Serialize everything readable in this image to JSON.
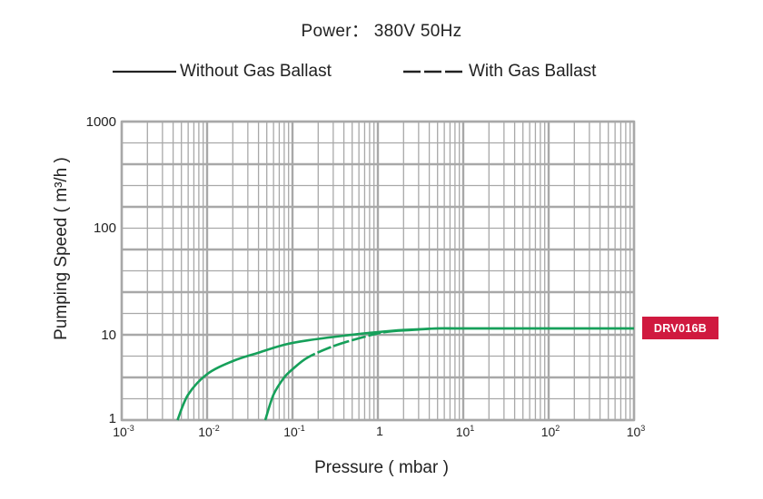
{
  "title": "Power： 380V 50Hz",
  "legend": {
    "solid_label": "Without Gas Ballast",
    "dashed_label": "With Gas Ballast"
  },
  "badge": {
    "label": "DRV016B",
    "color": "#d0193f"
  },
  "axes": {
    "ylabel": "Pumping Speed ( m³/h )",
    "xlabel": "Pressure ( mbar )",
    "yticks": [
      "1000",
      "100",
      "10",
      "1"
    ],
    "xticks": [
      {
        "base": "10",
        "exp": "-3"
      },
      {
        "base": "10",
        "exp": "-2"
      },
      {
        "base": "10",
        "exp": "-1"
      },
      {
        "base": "1",
        "exp": ""
      },
      {
        "base": "10",
        "exp": "1"
      },
      {
        "base": "10",
        "exp": "2"
      },
      {
        "base": "10",
        "exp": "3"
      }
    ]
  },
  "colors": {
    "curve": "#16a05a",
    "grid": "#a8a8a8",
    "grid_major": "#9a9a9a"
  },
  "chart_data": {
    "type": "line",
    "title": "Power: 380V 50Hz",
    "xlabel": "Pressure ( mbar )",
    "ylabel": "Pumping Speed ( m³/h )",
    "xscale": "log",
    "yscale": "log",
    "xlim": [
      0.001,
      1000
    ],
    "ylim": [
      1,
      1000
    ],
    "grid": true,
    "legend_position": "top",
    "model_label": "DRV016B",
    "series": [
      {
        "name": "Without Gas Ballast",
        "style": "solid",
        "x": [
          0.0045,
          0.006,
          0.01,
          0.02,
          0.04,
          0.08,
          0.15,
          0.4,
          1,
          2,
          5,
          10,
          100,
          1000
        ],
        "y": [
          1,
          2,
          3.5,
          5,
          6.3,
          7.8,
          8.8,
          10,
          10.8,
          11.3,
          11.7,
          11.7,
          11.7,
          11.7
        ]
      },
      {
        "name": "With Gas Ballast",
        "style": "dashed",
        "x": [
          0.048,
          0.06,
          0.08,
          0.1,
          0.15,
          0.3,
          0.6,
          1.2,
          2.5,
          5,
          10,
          100,
          1000
        ],
        "y": [
          1,
          2,
          3.2,
          4,
          5.5,
          7.5,
          9.3,
          10.8,
          11.3,
          11.7,
          11.7,
          11.7,
          11.7
        ]
      }
    ]
  }
}
